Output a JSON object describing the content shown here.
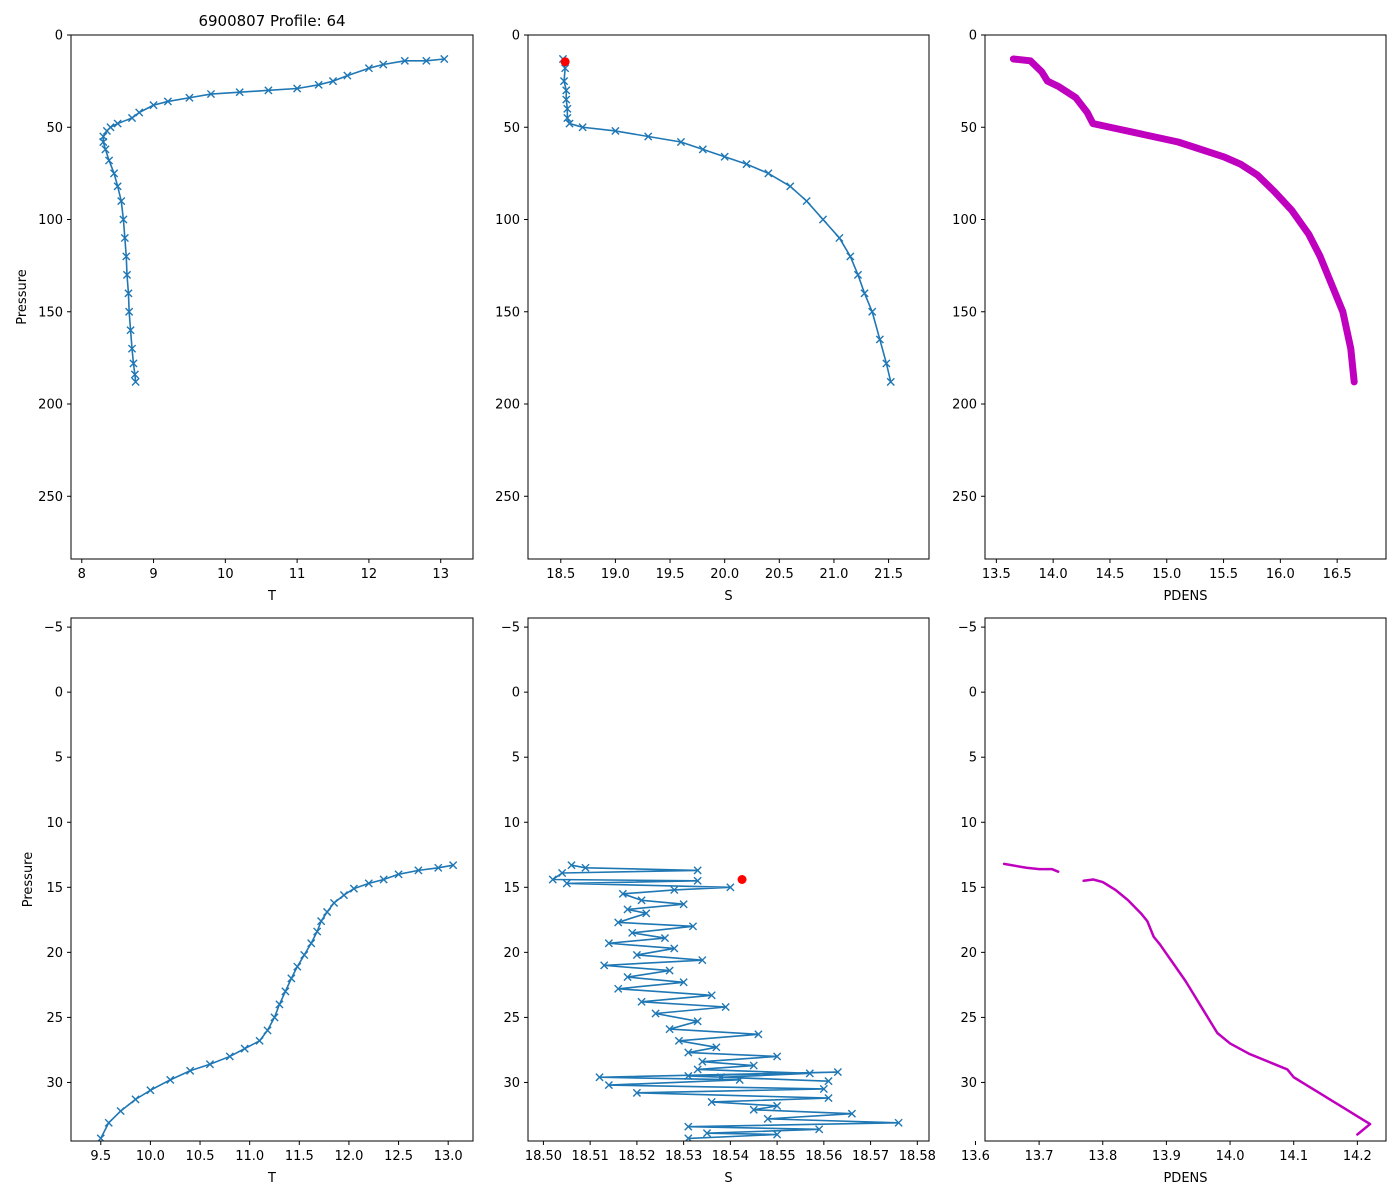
{
  "figure_title": "6900807 Profile: 64",
  "colors": {
    "series": "#1f77b4",
    "pdens": "#bf00bf",
    "highlight": "#ff0000",
    "axis": "#000000"
  },
  "chart_data": [
    {
      "id": "top-T",
      "type": "line",
      "title": "6900807 Profile: 64",
      "xlabel": "T",
      "ylabel": "Pressure",
      "xlim": [
        7.85,
        13.45
      ],
      "ylim": [
        284,
        0
      ],
      "xticks": [
        8,
        9,
        10,
        11,
        12,
        13
      ],
      "yticks": [
        0,
        50,
        100,
        150,
        200,
        250
      ],
      "marker": "x",
      "series": [
        {
          "name": "T",
          "x": [
            13.05,
            12.8,
            12.5,
            12.2,
            12.0,
            11.7,
            11.5,
            11.3,
            11.0,
            10.6,
            10.2,
            9.8,
            9.5,
            9.2,
            9.0,
            8.8,
            8.7,
            8.5,
            8.4,
            8.35,
            8.3,
            8.3,
            8.33,
            8.38,
            8.45,
            8.5,
            8.55,
            8.58,
            8.6,
            8.62,
            8.63,
            8.65,
            8.66,
            8.68,
            8.7,
            8.72,
            8.74,
            8.75
          ],
          "y": [
            13,
            14,
            14,
            16,
            18,
            22,
            25,
            27,
            29,
            30,
            31,
            32,
            34,
            36,
            38,
            42,
            45,
            48,
            50,
            52,
            55,
            58,
            62,
            68,
            75,
            82,
            90,
            100,
            110,
            120,
            130,
            140,
            150,
            160,
            170,
            178,
            184,
            188
          ]
        }
      ]
    },
    {
      "id": "top-S",
      "type": "line",
      "xlabel": "S",
      "ylabel": "",
      "xlim": [
        18.2,
        21.87
      ],
      "ylim": [
        284,
        0
      ],
      "xticks": [
        18.5,
        19.0,
        19.5,
        20.0,
        20.5,
        21.0,
        21.5
      ],
      "yticks": [
        0,
        50,
        100,
        150,
        200,
        250
      ],
      "marker": "x",
      "highlight": {
        "x": 18.54,
        "y": 14.5
      },
      "series": [
        {
          "name": "S",
          "x": [
            18.52,
            18.54,
            18.53,
            18.55,
            18.55,
            18.56,
            18.56,
            18.58,
            18.7,
            19.0,
            19.3,
            19.6,
            19.8,
            20.0,
            20.2,
            20.4,
            20.6,
            20.75,
            20.9,
            21.05,
            21.15,
            21.22,
            21.28,
            21.35,
            21.42,
            21.48,
            21.52
          ],
          "y": [
            13,
            18,
            25,
            30,
            35,
            40,
            45,
            48,
            50,
            52,
            55,
            58,
            62,
            66,
            70,
            75,
            82,
            90,
            100,
            110,
            120,
            130,
            140,
            150,
            165,
            178,
            188
          ]
        }
      ]
    },
    {
      "id": "top-PDENS",
      "type": "line",
      "xlabel": "PDENS",
      "ylabel": "",
      "xlim": [
        13.4,
        16.93
      ],
      "ylim": [
        284,
        0
      ],
      "xticks": [
        13.5,
        14.0,
        14.5,
        15.0,
        15.5,
        16.0,
        16.5
      ],
      "yticks": [
        0,
        50,
        100,
        150,
        200,
        250
      ],
      "marker": "none",
      "series": [
        {
          "name": "PDENS",
          "x": [
            13.65,
            13.8,
            13.85,
            13.9,
            13.95,
            14.05,
            14.2,
            14.3,
            14.35,
            14.5,
            14.8,
            15.1,
            15.3,
            15.5,
            15.65,
            15.8,
            15.95,
            16.1,
            16.25,
            16.35,
            16.45,
            16.55,
            16.62,
            16.65
          ],
          "y": [
            13,
            14,
            17,
            20,
            25,
            28,
            34,
            42,
            48,
            50,
            54,
            58,
            62,
            66,
            70,
            76,
            85,
            95,
            108,
            120,
            135,
            150,
            170,
            188
          ]
        }
      ]
    },
    {
      "id": "bottom-T",
      "type": "line",
      "xlabel": "T",
      "ylabel": "Pressure",
      "xlim": [
        9.2,
        13.25
      ],
      "ylim": [
        34.5,
        -5.7
      ],
      "xticks": [
        9.5,
        10.0,
        10.5,
        11.0,
        11.5,
        12.0,
        12.5,
        13.0
      ],
      "yticks": [
        -5,
        0,
        5,
        10,
        15,
        20,
        25,
        30
      ],
      "marker": "x",
      "series": [
        {
          "name": "T",
          "x": [
            13.05,
            12.9,
            12.7,
            12.5,
            12.35,
            12.2,
            12.05,
            11.95,
            11.85,
            11.78,
            11.72,
            11.68,
            11.62,
            11.55,
            11.48,
            11.42,
            11.36,
            11.3,
            11.25,
            11.18,
            11.1,
            10.95,
            10.8,
            10.6,
            10.4,
            10.2,
            10.0,
            9.85,
            9.7,
            9.58,
            9.5
          ],
          "y": [
            13.3,
            13.5,
            13.7,
            14.0,
            14.4,
            14.7,
            15.1,
            15.6,
            16.2,
            16.9,
            17.6,
            18.4,
            19.3,
            20.2,
            21.1,
            22.0,
            23.0,
            24.0,
            25.0,
            26.0,
            26.8,
            27.4,
            28.0,
            28.6,
            29.1,
            29.8,
            30.6,
            31.3,
            32.2,
            33.1,
            34.3
          ]
        }
      ]
    },
    {
      "id": "bottom-S",
      "type": "line",
      "xlabel": "S",
      "ylabel": "",
      "xlim": [
        18.4967,
        18.5825
      ],
      "ylim": [
        34.5,
        -5.7
      ],
      "xticks": [
        18.5,
        18.51,
        18.52,
        18.53,
        18.54,
        18.55,
        18.56,
        18.57,
        18.58
      ],
      "yticks": [
        -5,
        0,
        5,
        10,
        15,
        20,
        25,
        30
      ],
      "marker": "x",
      "highlight": {
        "x": 18.5425,
        "y": 14.4
      },
      "series": [
        {
          "name": "S",
          "x": [
            18.506,
            18.509,
            18.533,
            18.504,
            18.502,
            18.533,
            18.505,
            18.54,
            18.528,
            18.517,
            18.521,
            18.53,
            18.518,
            18.522,
            18.516,
            18.532,
            18.519,
            18.526,
            18.514,
            18.528,
            18.52,
            18.534,
            18.513,
            18.527,
            18.518,
            18.53,
            18.516,
            18.536,
            18.521,
            18.539,
            18.524,
            18.533,
            18.527,
            18.546,
            18.529,
            18.537,
            18.531,
            18.55,
            18.534,
            18.545,
            18.533,
            18.557,
            18.538,
            18.561,
            18.531,
            18.563,
            18.512,
            18.542,
            18.514,
            18.56,
            18.52,
            18.561,
            18.536,
            18.55,
            18.545,
            18.566,
            18.548,
            18.576,
            18.531,
            18.559,
            18.535,
            18.55,
            18.531
          ],
          "y": [
            13.3,
            13.5,
            13.7,
            13.9,
            14.4,
            14.5,
            14.7,
            15.0,
            15.2,
            15.5,
            16.0,
            16.3,
            16.7,
            17.0,
            17.7,
            18.0,
            18.5,
            18.9,
            19.3,
            19.7,
            20.2,
            20.6,
            21.0,
            21.4,
            21.9,
            22.3,
            22.8,
            23.3,
            23.8,
            24.2,
            24.7,
            25.3,
            25.9,
            26.3,
            26.8,
            27.3,
            27.7,
            28.0,
            28.4,
            28.7,
            29.0,
            29.3,
            29.6,
            29.9,
            29.5,
            29.2,
            29.6,
            29.8,
            30.2,
            30.5,
            30.8,
            31.2,
            31.5,
            31.8,
            32.1,
            32.4,
            32.8,
            33.1,
            33.4,
            33.6,
            33.9,
            34.0,
            34.3
          ]
        }
      ]
    },
    {
      "id": "bottom-PDENS",
      "type": "line",
      "xlabel": "PDENS",
      "ylabel": "",
      "xlim": [
        13.615,
        14.245
      ],
      "ylim": [
        34.5,
        -5.7
      ],
      "xticks": [
        13.6,
        13.7,
        13.8,
        13.9,
        14.0,
        14.1,
        14.2
      ],
      "yticks": [
        -5,
        0,
        5,
        10,
        15,
        20,
        25,
        30
      ],
      "marker": "none",
      "segments": [
        {
          "x": [
            13.645,
            13.68,
            13.7,
            13.72,
            13.73
          ],
          "y": [
            13.2,
            13.5,
            13.6,
            13.6,
            13.8
          ]
        },
        {
          "x": [
            13.77,
            13.785,
            13.8,
            13.81,
            13.82,
            13.83,
            13.84,
            13.85,
            13.86,
            13.87,
            13.875,
            13.88,
            13.89,
            13.9,
            13.91,
            13.92,
            13.93,
            13.94,
            13.95,
            13.96,
            13.97,
            13.98,
            14.0,
            14.03,
            14.06,
            14.09,
            14.1,
            14.12,
            14.14,
            14.16,
            14.18,
            14.2,
            14.22,
            14.2
          ],
          "y": [
            14.5,
            14.4,
            14.6,
            14.9,
            15.2,
            15.6,
            16.0,
            16.5,
            17.0,
            17.6,
            18.2,
            18.8,
            19.4,
            20.1,
            20.8,
            21.5,
            22.2,
            23.0,
            23.8,
            24.6,
            25.4,
            26.2,
            27.0,
            27.8,
            28.4,
            29.0,
            29.6,
            30.2,
            30.8,
            31.4,
            32.0,
            32.6,
            33.2,
            34.0
          ]
        }
      ]
    }
  ]
}
